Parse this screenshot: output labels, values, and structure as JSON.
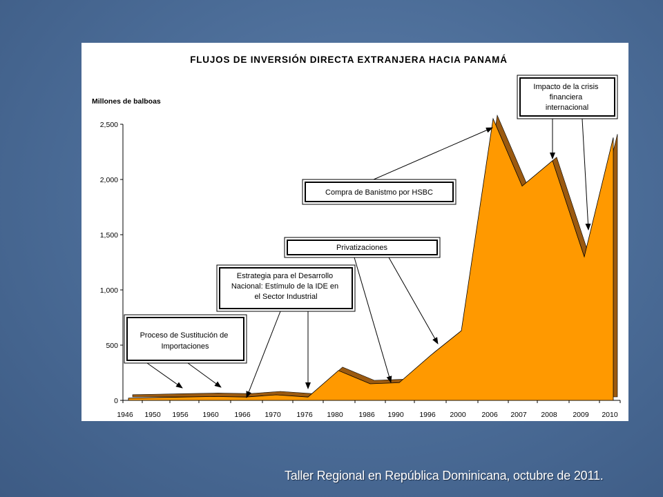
{
  "slide": {
    "footer": "Taller Regional en República Dominicana, octubre de 2011."
  },
  "chart_data": {
    "type": "area",
    "title": "FLUJOS DE INVERSIÓN DIRECTA EXTRANJERA HACIA PANAMÁ",
    "ylabel": "Millones de balboas",
    "xlabel": "",
    "ylim": [
      0,
      2500
    ],
    "yticks": [
      0,
      500,
      1000,
      1500,
      2000,
      2500
    ],
    "ytick_labels": [
      "0",
      "500",
      "1,000",
      "1,500",
      "2,000",
      "2,500"
    ],
    "x": [
      "1946",
      "1950",
      "1956",
      "1960",
      "1966",
      "1970",
      "1976",
      "1980",
      "1986",
      "1990",
      "1996",
      "2000",
      "2006",
      "2007",
      "2008",
      "2009",
      "2010"
    ],
    "series": [
      {
        "values": [
          20,
          25,
          30,
          35,
          30,
          50,
          30,
          270,
          150,
          160,
          410,
          630,
          2550,
          1940,
          2170,
          1300,
          2380
        ]
      }
    ],
    "grid": false,
    "fill_color": "#ff9900",
    "side_color": "#9b5a10",
    "annotations": [
      {
        "text": "Proceso de Sustitución de Importaciones",
        "points_to": [
          "1956",
          "1960"
        ]
      },
      {
        "text": "Estrategia para el Desarrollo Nacional: Estímulo de la IDE en el Sector Industrial",
        "points_to": [
          "1966",
          "1976"
        ]
      },
      {
        "text": "Privatizaciones",
        "points_to": [
          "1990",
          "1996"
        ]
      },
      {
        "text": "Compra de Banistmo por HSBC",
        "points_to": [
          "2006"
        ]
      },
      {
        "text": "Impacto de la crisis financiera internacional",
        "points_to": [
          "2008",
          "2009"
        ]
      }
    ]
  }
}
